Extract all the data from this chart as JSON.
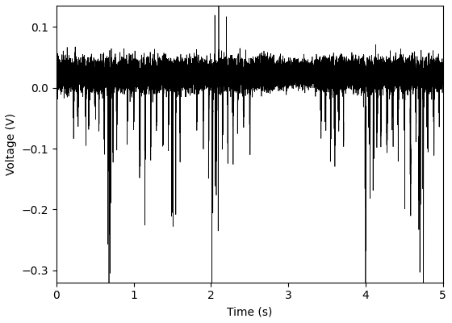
{
  "xlabel": "Time (s)",
  "ylabel": "Voltage (V)",
  "xlim": [
    0,
    5
  ],
  "ylim": [
    -0.32,
    0.135
  ],
  "line_color": "black",
  "line_width": 0.5,
  "background_color": "white",
  "sample_rate": 5000,
  "duration": 5.0,
  "base_noise_std": 0.012,
  "base_dc": 0.022,
  "xticks": [
    0,
    1,
    2,
    3,
    4,
    5
  ],
  "yticks": [
    -0.3,
    -0.2,
    -0.1,
    0.0,
    0.1
  ],
  "figsize": [
    5.6,
    4.0
  ],
  "dpi": 100
}
